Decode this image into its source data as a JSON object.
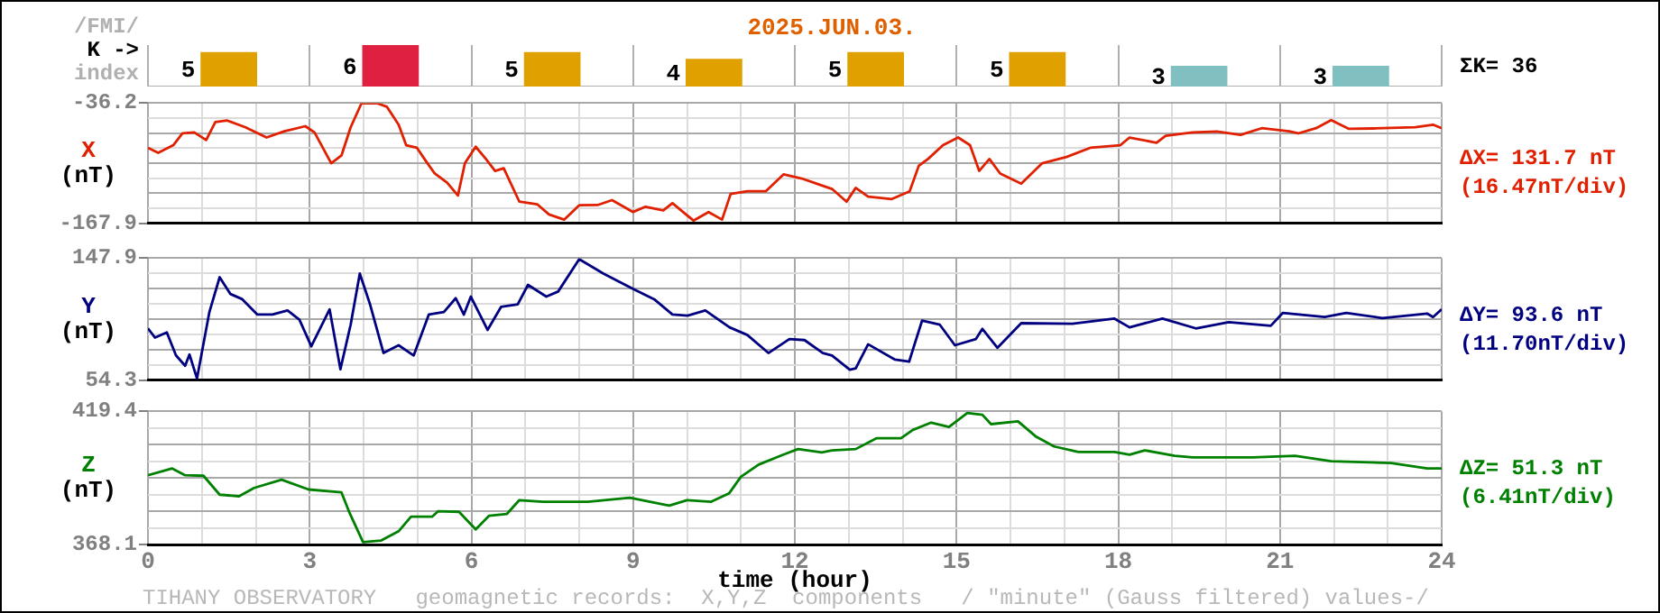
{
  "chart_data": [
    {
      "type": "bar",
      "title": "2025.JUN.03.",
      "categories": [
        null,
        null,
        null,
        null,
        null,
        null,
        null,
        null
      ],
      "values": [
        5,
        6,
        5,
        4,
        5,
        5,
        3,
        3
      ],
      "colors": [
        "#e0a000",
        "#e02040",
        "#e0a000",
        "#e0a000",
        "#e0a000",
        "#e0a000",
        "#80c0c0",
        "#80c0c0"
      ],
      "data_labels": true,
      "grid": "x",
      "annotations": [
        "/FMI/",
        "K ->",
        "index",
        "ΣK= 36"
      ]
    },
    {
      "type": "line",
      "ylabel": "X (nT)",
      "color": "#e02000",
      "grid": true,
      "tick_labels": "y",
      "xlim": [
        0,
        24
      ],
      "ylim": [
        -167.9,
        -36.2
      ],
      "xticks": [
        0,
        {
          "value": 1,
          "label": null
        },
        {
          "value": 2,
          "label": null
        },
        3,
        {
          "value": 4,
          "label": null
        },
        {
          "value": 5,
          "label": null
        },
        6,
        {
          "value": 7,
          "label": null
        },
        {
          "value": 8,
          "label": null
        },
        9,
        {
          "value": 10,
          "label": null
        },
        {
          "value": 11,
          "label": null
        },
        12,
        {
          "value": 13,
          "label": null
        },
        {
          "value": 14,
          "label": null
        },
        15,
        {
          "value": 16,
          "label": null
        },
        {
          "value": 17,
          "label": null
        },
        18,
        {
          "value": 19,
          "label": null
        },
        {
          "value": 20,
          "label": null
        },
        21,
        {
          "value": 22,
          "label": null
        },
        {
          "value": 23,
          "label": null
        },
        24
      ],
      "yticks": [
        -167.9,
        {
          "value": -151.4,
          "label": null
        },
        {
          "value": -135.0,
          "label": null
        },
        {
          "value": -118.5,
          "label": null
        },
        {
          "value": -102.1,
          "label": null
        },
        {
          "value": -85.6,
          "label": null
        },
        {
          "value": -69.1,
          "label": null
        },
        {
          "value": -52.7,
          "label": null
        },
        -36.2
      ],
      "x": [
        0,
        0.19,
        0.47,
        0.64,
        0.86,
        1.08,
        1.25,
        1.47,
        1.81,
        2.2,
        2.53,
        2.92,
        3.09,
        3.4,
        3.59,
        3.76,
        3.96,
        4.26,
        4.43,
        4.65,
        4.79,
        4.99,
        5.15,
        5.32,
        5.55,
        5.75,
        5.88,
        6.08,
        6.27,
        6.44,
        6.6,
        6.89,
        7.22,
        7.44,
        7.72,
        8.0,
        8.34,
        8.61,
        9.0,
        9.23,
        9.56,
        9.73,
        10.12,
        10.4,
        10.65,
        10.81,
        11.12,
        11.46,
        11.79,
        12.13,
        12.46,
        12.69,
        12.96,
        13.13,
        13.36,
        13.8,
        14.13,
        14.3,
        14.47,
        14.75,
        15.03,
        15.25,
        15.42,
        15.61,
        15.81,
        16.2,
        16.59,
        17.04,
        17.48,
        18.04,
        18.21,
        18.71,
        18.88,
        19.38,
        19.83,
        20.27,
        20.66,
        21.17,
        21.34,
        21.67,
        21.95,
        22.28,
        22.73,
        23.51,
        23.84,
        24
      ],
      "values": [
        -85.2,
        -90.7,
        -82.3,
        -69.4,
        -68.3,
        -76.7,
        -57.0,
        -55.3,
        -62.7,
        -73.9,
        -67.1,
        -61.5,
        -68.3,
        -102.1,
        -93.6,
        -62.7,
        -36.5,
        -36.5,
        -40.1,
        -59.8,
        -82.3,
        -85.2,
        -99.2,
        -113.4,
        -123.5,
        -137.5,
        -102.1,
        -84.0,
        -97.5,
        -110.5,
        -107.6,
        -144.3,
        -147.1,
        -158.3,
        -164.0,
        -148.2,
        -148.0,
        -142.6,
        -155.6,
        -149.8,
        -153.9,
        -146.0,
        -165.0,
        -155.6,
        -164.0,
        -135.8,
        -132.9,
        -132.9,
        -114.4,
        -118.9,
        -125.7,
        -130.3,
        -144.3,
        -129.1,
        -138.7,
        -141.4,
        -132.9,
        -104.9,
        -97.5,
        -82.3,
        -73.9,
        -82.3,
        -110.5,
        -97.5,
        -113.4,
        -124.5,
        -102.1,
        -95.3,
        -85.2,
        -82.3,
        -73.9,
        -79.6,
        -72.0,
        -68.3,
        -67.3,
        -71.1,
        -63.7,
        -67.1,
        -69.4,
        -63.7,
        -54.8,
        -64.4,
        -64.0,
        -62.7,
        -59.8,
        -63.7
      ],
      "annotations": [
        "ΔX= 131.7 nT",
        "(16.47nT/div)"
      ]
    },
    {
      "type": "line",
      "ylabel": "Y (nT)",
      "color": "#000080",
      "grid": true,
      "tick_labels": "y",
      "xlim": [
        0,
        24
      ],
      "ylim": [
        54.3,
        147.9
      ],
      "xticks": [
        0,
        {
          "value": 1,
          "label": null
        },
        {
          "value": 2,
          "label": null
        },
        3,
        {
          "value": 4,
          "label": null
        },
        {
          "value": 5,
          "label": null
        },
        6,
        {
          "value": 7,
          "label": null
        },
        {
          "value": 8,
          "label": null
        },
        9,
        {
          "value": 10,
          "label": null
        },
        {
          "value": 11,
          "label": null
        },
        12,
        {
          "value": 13,
          "label": null
        },
        {
          "value": 14,
          "label": null
        },
        15,
        {
          "value": 16,
          "label": null
        },
        {
          "value": 17,
          "label": null
        },
        18,
        {
          "value": 19,
          "label": null
        },
        {
          "value": 20,
          "label": null
        },
        21,
        {
          "value": 22,
          "label": null
        },
        {
          "value": 23,
          "label": null
        },
        24
      ],
      "yticks": [
        54.3,
        {
          "value": 66.0,
          "label": null
        },
        {
          "value": 77.7,
          "label": null
        },
        {
          "value": 89.4,
          "label": null
        },
        {
          "value": 101.1,
          "label": null
        },
        {
          "value": 112.8,
          "label": null
        },
        {
          "value": 124.5,
          "label": null
        },
        {
          "value": 136.2,
          "label": null
        },
        147.9
      ],
      "x": [
        0,
        0.13,
        0.35,
        0.52,
        0.69,
        0.77,
        0.91,
        1.14,
        1.33,
        1.53,
        1.75,
        2.03,
        2.31,
        2.59,
        2.81,
        3.03,
        3.37,
        3.57,
        3.76,
        3.93,
        4.12,
        4.37,
        4.65,
        4.93,
        5.21,
        5.49,
        5.71,
        5.86,
        5.99,
        6.3,
        6.55,
        6.86,
        7.05,
        7.39,
        7.61,
        8.0,
        8.45,
        9.0,
        9.39,
        9.73,
        10.01,
        10.34,
        10.79,
        11.12,
        11.51,
        11.9,
        12.18,
        12.52,
        12.69,
        13.02,
        13.13,
        13.36,
        13.86,
        14.12,
        14.36,
        14.69,
        14.97,
        15.36,
        15.48,
        15.76,
        16.2,
        17.15,
        17.93,
        18.21,
        18.82,
        19.44,
        20.05,
        20.83,
        21.05,
        21.83,
        22.23,
        22.9,
        23.73,
        23.84,
        24
      ],
      "values": [
        94.0,
        86.9,
        90.9,
        73.2,
        65.3,
        73.9,
        55.5,
        106.6,
        133.3,
        120.4,
        116.4,
        104.6,
        104.6,
        107.8,
        100.7,
        80.2,
        108.6,
        62.6,
        96.8,
        136.1,
        112.5,
        75.1,
        81.0,
        73.2,
        104.6,
        106.6,
        117.2,
        104.6,
        118.4,
        92.8,
        110.5,
        112.5,
        127.4,
        118.4,
        122.3,
        147.1,
        136.1,
        124.3,
        116.4,
        104.6,
        103.8,
        107.8,
        94.8,
        88.9,
        75.1,
        85.8,
        85.0,
        75.1,
        73.2,
        62.2,
        63.3,
        81.8,
        70.0,
        68.4,
        99.9,
        96.8,
        81.0,
        85.8,
        93.6,
        79.1,
        98.0,
        97.6,
        101.5,
        94.8,
        101.5,
        94.0,
        98.8,
        96.0,
        105.8,
        102.7,
        105.8,
        101.9,
        105.4,
        102.7,
        108.6
      ],
      "annotations": [
        "ΔY= 93.6 nT",
        "(11.70nT/div)"
      ]
    },
    {
      "type": "line",
      "ylabel": "Z (nT)",
      "xlabel": "time (hour)",
      "color": "#008000",
      "grid": true,
      "xlim": [
        0,
        24
      ],
      "ylim": [
        368.1,
        419.4
      ],
      "xticks": [
        0,
        {
          "value": 1,
          "label": null
        },
        {
          "value": 2,
          "label": null
        },
        3,
        {
          "value": 4,
          "label": null
        },
        {
          "value": 5,
          "label": null
        },
        6,
        {
          "value": 7,
          "label": null
        },
        {
          "value": 8,
          "label": null
        },
        9,
        {
          "value": 10,
          "label": null
        },
        {
          "value": 11,
          "label": null
        },
        12,
        {
          "value": 13,
          "label": null
        },
        {
          "value": 14,
          "label": null
        },
        15,
        {
          "value": 16,
          "label": null
        },
        {
          "value": 17,
          "label": null
        },
        18,
        {
          "value": 19,
          "label": null
        },
        {
          "value": 20,
          "label": null
        },
        21,
        {
          "value": 22,
          "label": null
        },
        {
          "value": 23,
          "label": null
        },
        24
      ],
      "yticks": [
        368.1,
        {
          "value": 374.5,
          "label": null
        },
        {
          "value": 380.9,
          "label": null
        },
        {
          "value": 387.3,
          "label": null
        },
        {
          "value": 393.8,
          "label": null
        },
        {
          "value": 400.2,
          "label": null
        },
        {
          "value": 406.6,
          "label": null
        },
        {
          "value": 413.0,
          "label": null
        },
        419.4
      ],
      "x": [
        0,
        0.45,
        0.69,
        1.03,
        1.33,
        1.69,
        1.97,
        2.48,
        2.98,
        3.59,
        3.74,
        3.99,
        4.32,
        4.65,
        4.88,
        5.27,
        5.38,
        5.77,
        6.08,
        6.33,
        6.66,
        6.89,
        7.33,
        8.16,
        8.94,
        9.67,
        10.0,
        10.45,
        10.78,
        11.0,
        11.33,
        11.78,
        12.06,
        12.5,
        12.69,
        13.13,
        13.52,
        13.97,
        14.19,
        14.53,
        14.86,
        15.2,
        15.48,
        15.64,
        16.14,
        16.48,
        16.81,
        17.26,
        17.93,
        18.21,
        18.49,
        19.05,
        19.38,
        20.5,
        21.28,
        21.95,
        23.06,
        23.73,
        24
      ],
      "values": [
        394.8,
        397.4,
        394.8,
        394.6,
        387.3,
        386.7,
        389.9,
        393.1,
        389.3,
        388.2,
        380.3,
        369.0,
        369.6,
        373.2,
        378.8,
        378.8,
        380.9,
        380.7,
        373.9,
        379.2,
        379.9,
        385.2,
        384.6,
        384.6,
        386.1,
        383.1,
        385.2,
        384.6,
        387.8,
        394.2,
        398.9,
        402.7,
        404.9,
        403.6,
        404.4,
        404.9,
        409.1,
        409.1,
        412.3,
        415.1,
        413.4,
        418.8,
        418.1,
        414.5,
        415.6,
        409.6,
        405.9,
        403.8,
        403.8,
        402.7,
        404.4,
        402.3,
        401.7,
        401.7,
        402.3,
        400.2,
        399.5,
        397.4,
        397.4
      ],
      "annotations": [
        "ΔZ= 51.3 nT",
        "(6.41nT/div)",
        "TIHANY OBSERVATORY   geomagnetic records:  X,Y,Z  components   / \"minute\" (Gauss filtered) values-/"
      ]
    }
  ]
}
